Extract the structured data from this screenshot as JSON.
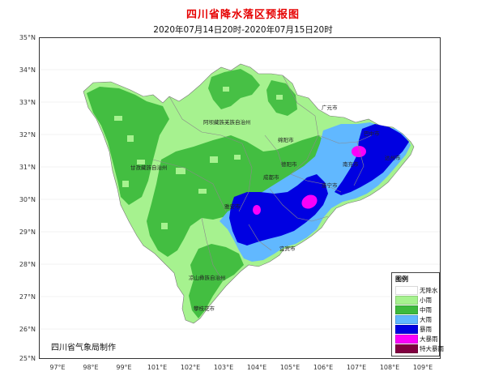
{
  "title": "四川省降水落区预报图",
  "subtitle": "2020年07月14日20时-2020年07月15日20时",
  "agency": "四川省气象局制作",
  "lat_labels": [
    "35°N",
    "34°N",
    "33°N",
    "32°N",
    "31°N",
    "30°N",
    "29°N",
    "28°N",
    "27°N",
    "26°N",
    "25°N"
  ],
  "lon_labels": [
    "97°E",
    "98°E",
    "99°E",
    "101°E",
    "102°E",
    "103°E",
    "104°E",
    "105°E",
    "106°E",
    "107°E",
    "108°E",
    "109°E"
  ],
  "cities": [
    "阿坝藏族羌族自治州",
    "广元市",
    "绵阳市",
    "巴中市",
    "达州市",
    "甘孜藏族自治州",
    "德阳市",
    "成都市",
    "南充市",
    "遂宁市",
    "雅安市",
    "宜宾市",
    "凉山彝族自治州",
    "攀枝花市"
  ],
  "legend": {
    "title": "图例",
    "items": [
      {
        "label": "无降水",
        "color": "#ffffff"
      },
      {
        "label": "小雨",
        "color": "#a6f28f"
      },
      {
        "label": "中雨",
        "color": "#3dba3d"
      },
      {
        "label": "大雨",
        "color": "#61b8ff"
      },
      {
        "label": "暴雨",
        "color": "#0000e1"
      },
      {
        "label": "大暴雨",
        "color": "#fa00fa"
      },
      {
        "label": "特大暴雨",
        "color": "#800040"
      }
    ]
  }
}
